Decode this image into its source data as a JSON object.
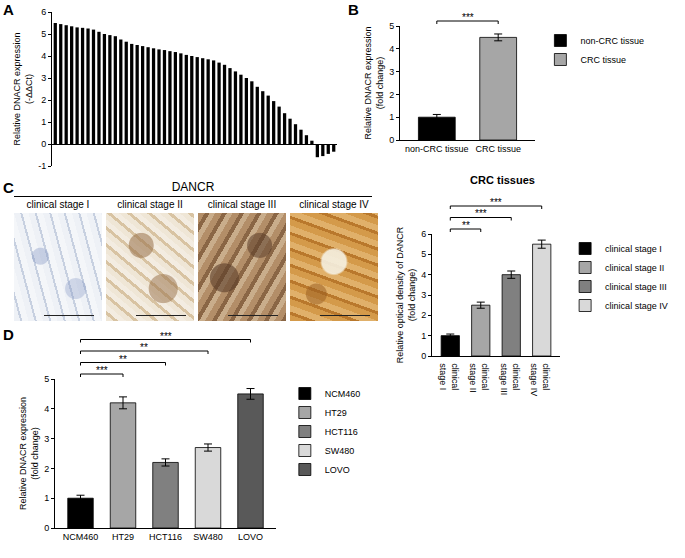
{
  "chart_data": [
    {
      "panel": "A",
      "type": "bar",
      "categories": [
        null,
        null,
        null,
        null,
        null,
        null,
        null,
        null,
        null,
        null,
        null,
        null,
        null,
        null,
        null,
        null,
        null,
        null,
        null,
        null,
        null,
        null,
        null,
        null,
        null,
        null,
        null,
        null,
        null,
        null,
        null,
        null,
        null,
        null,
        null,
        null,
        null,
        null,
        null,
        null,
        null,
        null,
        null,
        null,
        null,
        null,
        null,
        null,
        null,
        null,
        null,
        null
      ],
      "values": [
        5.5,
        5.45,
        5.4,
        5.35,
        5.3,
        5.28,
        5.25,
        5.2,
        5.1,
        5.0,
        4.95,
        4.9,
        4.75,
        4.65,
        4.55,
        4.5,
        4.45,
        4.4,
        4.35,
        4.3,
        4.27,
        4.22,
        4.18,
        4.12,
        4.05,
        4.0,
        3.95,
        3.9,
        3.85,
        3.8,
        3.7,
        3.6,
        3.45,
        3.3,
        3.15,
        3.0,
        2.85,
        2.6,
        2.4,
        2.2,
        1.95,
        1.7,
        1.4,
        1.15,
        0.9,
        0.65,
        0.4,
        0.15,
        -0.6,
        -0.55,
        -0.45,
        -0.35
      ],
      "color": "#000000",
      "y_label": "Relative DNACR expression (-ΔΔCt)",
      "ylim": [
        -1,
        6
      ],
      "yticks": [
        -1,
        0,
        1,
        2,
        3,
        4,
        5,
        6
      ],
      "grid": false,
      "tick_labels": "y"
    },
    {
      "panel": "B",
      "type": "bar",
      "categories": [
        "non-CRC tissue",
        "CRC tissue"
      ],
      "values": [
        1,
        4.5
      ],
      "errors": [
        0.12,
        0.15
      ],
      "colors": [
        "#000000",
        "#a6a6a6"
      ],
      "y_label": "Relative DNACR expression (fold change)",
      "ylim": [
        0,
        5
      ],
      "yticks": [
        0,
        1,
        2,
        3,
        4,
        5
      ],
      "grid": false,
      "legend": "right",
      "significance": [
        {
          "from": "non-CRC tissue",
          "to": "CRC tissue",
          "label": "***"
        }
      ]
    },
    {
      "type": "bar",
      "title": "CRC tissues",
      "categories": [
        "clinical stage I",
        "clinical stage II",
        "clinical stage III",
        "clinical stage IV"
      ],
      "values": [
        1,
        2.5,
        4,
        5.5
      ],
      "errors": [
        0.08,
        0.15,
        0.18,
        0.2
      ],
      "colors": [
        "#000000",
        "#a6a6a6",
        "#808080",
        "#d9d9d9"
      ],
      "y_label": "Relative optical density of DANCR (fold change)",
      "ylim": [
        0,
        6
      ],
      "yticks": [
        0,
        1,
        2,
        3,
        4,
        5,
        6
      ],
      "grid": false,
      "legend": "right",
      "significance": [
        {
          "from": "clinical stage I",
          "to": "clinical stage II",
          "label": "**"
        },
        {
          "from": "clinical stage I",
          "to": "clinical stage III",
          "label": "***"
        },
        {
          "from": "clinical stage I",
          "to": "clinical stage IV",
          "label": "***"
        }
      ]
    },
    {
      "panel": "D",
      "type": "bar",
      "categories": [
        "NCM460",
        "HT29",
        "HCT116",
        "SW480",
        "LOVO"
      ],
      "values": [
        1,
        4.2,
        2.2,
        2.7,
        4.5
      ],
      "errors": [
        0.1,
        0.2,
        0.12,
        0.12,
        0.18
      ],
      "colors": [
        "#000000",
        "#a6a6a6",
        "#808080",
        "#d9d9d9",
        "#595959"
      ],
      "y_label": "Relative DNACR expression (fold change)",
      "ylim": [
        0,
        5
      ],
      "yticks": [
        0,
        1,
        2,
        3,
        4,
        5
      ],
      "grid": false,
      "legend": "right",
      "significance": [
        {
          "from": "NCM460",
          "to": "HT29",
          "label": "***"
        },
        {
          "from": "NCM460",
          "to": "HCT116",
          "label": "**"
        },
        {
          "from": "NCM460",
          "to": "SW480",
          "label": "**"
        },
        {
          "from": "NCM460",
          "to": "LOVO",
          "label": "***"
        }
      ]
    }
  ],
  "images": {
    "panel": "C",
    "title": "DANCR",
    "labels": [
      "clinical stage I",
      "clinical stage II",
      "clinical stage III",
      "clinical stage IV"
    ]
  }
}
